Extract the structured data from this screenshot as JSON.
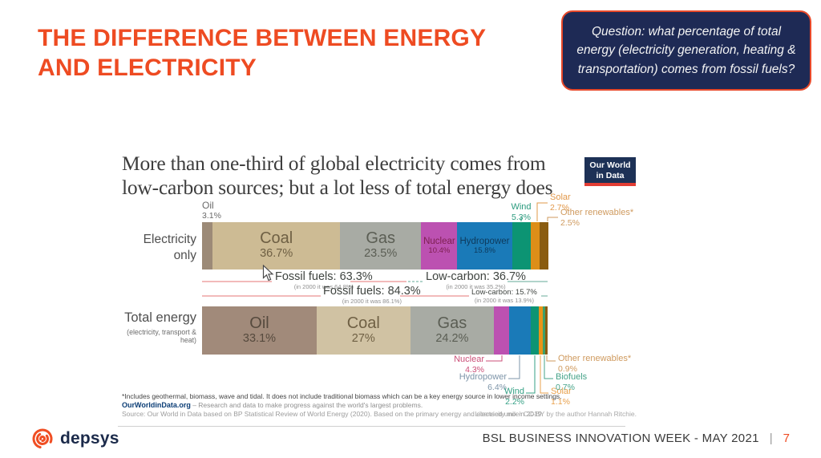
{
  "slide": {
    "title": "THE DIFFERENCE BETWEEN ENERGY AND ELECTRICITY",
    "question_box": {
      "text": "Question: what percentage of total energy (electricity generation, heating & transportation) comes from fossil fuels?",
      "bg_color": "#1e2a55",
      "border_color": "#e8492a"
    },
    "accent_color": "#ee4b22",
    "footer": {
      "brand": "depsys",
      "event": "BSL BUSINESS INNOVATION WEEK - MAY 2021",
      "separator": "|",
      "page": "7"
    }
  },
  "chart_data": {
    "type": "bar",
    "subtype": "stacked-horizontal-100-percent",
    "title": "More than one-third of global electricity comes from low-carbon sources; but a lot less of total energy does",
    "title_lines": [
      "More than one-third of global electricity comes from",
      "low-carbon sources; but a lot less of total energy does"
    ],
    "logo": {
      "line1": "Our World",
      "line2": "in Data"
    },
    "unit": "%",
    "xlim": [
      0,
      100
    ],
    "rows": [
      {
        "label_line1": "Electricity",
        "label_line2": "only",
        "segments": [
          {
            "name": "Oil",
            "display": "3.1%",
            "value": 3.1,
            "color": "#9c8a77"
          },
          {
            "name": "Coal",
            "display": "36.7%",
            "value": 36.7,
            "color": "#cdbb94",
            "label_size": "large",
            "label_color": "#6f6044"
          },
          {
            "name": "Gas",
            "display": "23.5%",
            "value": 23.5,
            "color": "#a8aba4",
            "label_size": "large",
            "label_color": "#5b5e54"
          },
          {
            "name": "Nuclear",
            "display": "10.4%",
            "value": 10.4,
            "color": "#bc51b1",
            "label_size": "small",
            "label_color": "#7d2050"
          },
          {
            "name": "Hydropower",
            "display": "15.8%",
            "value": 15.8,
            "color": "#1a7ab8",
            "label_size": "small",
            "label_color": "#0e3a5c"
          },
          {
            "name": "Wind",
            "display": "5.3%",
            "value": 5.3,
            "color": "#0c9473"
          },
          {
            "name": "Solar",
            "display": "2.7%",
            "value": 2.7,
            "color": "#dd8e18"
          },
          {
            "name": "Other renewables*",
            "display": "2.5%",
            "value": 2.5,
            "color": "#8a5c10"
          }
        ]
      },
      {
        "label_line1": "Total energy",
        "sublabel": "(electricity, transport & heat)",
        "segments": [
          {
            "name": "Oil",
            "display": "33.1%",
            "value": 33.1,
            "color": "#a18a7a",
            "label_size": "large",
            "label_color": "#564a3e"
          },
          {
            "name": "Coal",
            "display": "27%",
            "value": 27,
            "color": "#d0c2a3",
            "label_size": "large",
            "label_color": "#6f6044"
          },
          {
            "name": "Gas",
            "display": "24.2%",
            "value": 24.2,
            "color": "#a8aba4",
            "label_size": "large",
            "label_color": "#5b5e54"
          },
          {
            "name": "Nuclear",
            "display": "4.3%",
            "value": 4.3,
            "color": "#bc51b1"
          },
          {
            "name": "Hydropower",
            "display": "6.4%",
            "value": 6.4,
            "color": "#1a7ab8"
          },
          {
            "name": "Wind",
            "display": "2.2%",
            "value": 2.2,
            "color": "#0c9473"
          },
          {
            "name": "Solar",
            "display": "1.1%",
            "value": 1.1,
            "color": "#e89417"
          },
          {
            "name": "Biofuels",
            "display": "0.7%",
            "value": 0.7,
            "color": "#3da06a"
          },
          {
            "name": "Other renewables*",
            "display": "0.9%",
            "value": 0.9,
            "color": "#8a5c10"
          }
        ]
      }
    ],
    "brackets": [
      {
        "left_label": "Fossil fuels: 63.3%",
        "left_note": "(in 2000 it was 64.8%)",
        "right_label": "Low-carbon: 36.7%",
        "right_note": "(in 2000 it was 35.2%)"
      },
      {
        "left_label": "Fossil fuels: 84.3%",
        "left_note": "(in 2000 it was 86.1%)",
        "right_label": "Low-carbon: 15.7%",
        "right_note": "(in 2000 it was 13.9%)"
      }
    ],
    "footnote": "*Includes geothermal, biomass, wave and tidal. It does not include traditional biomass which can be a key energy source in lower income settings.",
    "credit_bold": "OurWorldinData.org",
    "credit_rest": " – Research and data to make progress against the world's largest problems.",
    "source": "Source: Our World in Data based on BP Statistical Review of World Energy (2020). Based on the primary energy and electricity mix in 2019.",
    "license": "Licensed under CC-BY by the author Hannah Ritchie."
  }
}
